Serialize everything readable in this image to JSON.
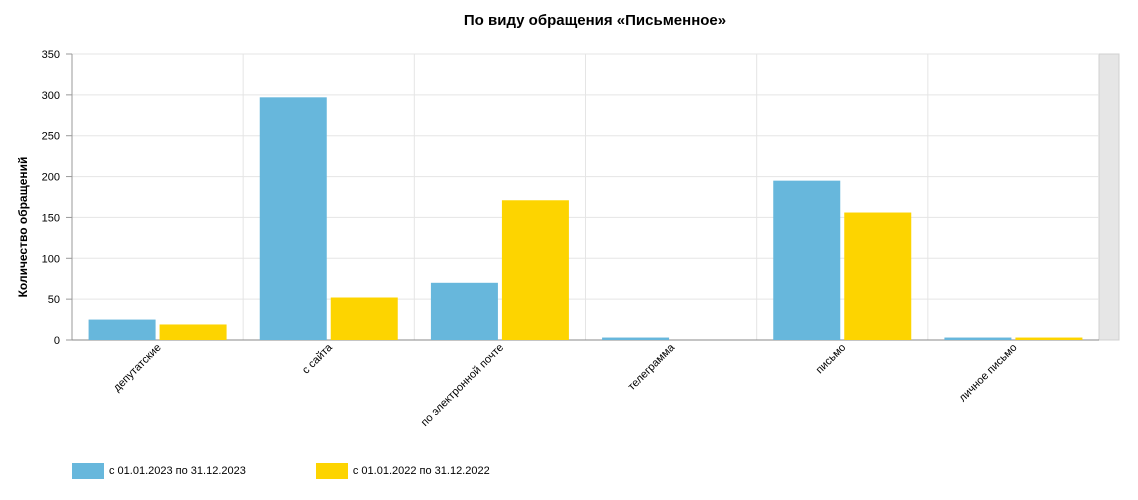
{
  "chart_data": {
    "type": "bar",
    "title": "По виду обращения «Письменное»",
    "xlabel": "",
    "ylabel": "Количество обращений",
    "ylim": [
      0,
      350
    ],
    "yticks": [
      0,
      50,
      100,
      150,
      200,
      250,
      300,
      350
    ],
    "grid": true,
    "legend_position": "bottom-left",
    "categories": [
      "депутатские",
      "с сайта",
      "по электронной почте",
      "телеграмма",
      "письмо",
      "личное письмо"
    ],
    "series": [
      {
        "name": "с 01.01.2023 по 31.12.2023",
        "color": "#67b7dc",
        "values": [
          25,
          297,
          70,
          3,
          195,
          3
        ]
      },
      {
        "name": "с 01.01.2022 по 31.12.2022",
        "color": "#fdd400",
        "values": [
          19,
          52,
          171,
          0,
          156,
          3
        ]
      }
    ]
  }
}
